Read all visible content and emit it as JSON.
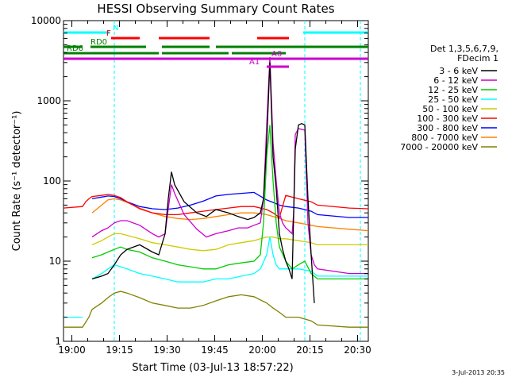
{
  "chart_data": {
    "type": "line",
    "title": "HESSI Observing Summary Count Rates",
    "xlabel": "Start Time (03-Jul-13 18:57:22)",
    "ylabel": "Count Rate (s⁻¹ detector⁻¹)",
    "ylog": true,
    "ylim": [
      1,
      10000
    ],
    "xlim_minutes": [
      0,
      96
    ],
    "x_ticks": [
      "19:00",
      "19:15",
      "19:30",
      "19:45",
      "20:00",
      "20:15",
      "20:30"
    ],
    "x_tick_minutes": [
      2.63,
      17.63,
      32.63,
      47.63,
      62.63,
      77.63,
      92.63
    ],
    "y_ticks": [
      "1",
      "10",
      "100",
      "1000",
      "10000"
    ],
    "y_tick_values": [
      1,
      10,
      100,
      1000,
      10000
    ],
    "legend_header": [
      "Det 1,3,5,6,7,9,",
      "FDecim 1"
    ],
    "timestamp": "3-Jul-2013 20:35",
    "series": [
      {
        "name": "3 - 6 keV",
        "color": "#000000",
        "x": [
          0,
          8,
          9,
          12,
          14,
          16,
          18,
          20,
          24,
          28,
          30,
          32,
          33,
          34,
          35,
          38,
          42,
          45,
          48,
          52,
          55,
          58,
          60,
          62,
          63,
          64,
          65,
          66,
          67,
          68,
          69,
          70,
          71,
          72,
          72.5,
          73,
          74,
          75,
          76,
          77,
          78,
          79,
          80
        ],
        "y": [
          null,
          null,
          6,
          6.5,
          7,
          9,
          12,
          14,
          16,
          13,
          12,
          22,
          60,
          130,
          90,
          55,
          40,
          36,
          44,
          40,
          36,
          33,
          35,
          40,
          60,
          300,
          3000,
          200,
          80,
          22,
          14,
          10,
          8,
          6,
          40,
          250,
          500,
          520,
          500,
          60,
          12,
          3,
          null
        ]
      },
      {
        "name": "6 - 12 keV",
        "color": "#cc00cc",
        "x": [
          0,
          8,
          9,
          12,
          14,
          16,
          18,
          20,
          24,
          28,
          30,
          32,
          33,
          34,
          35,
          38,
          42,
          45,
          48,
          52,
          55,
          58,
          60,
          62,
          63,
          64,
          65,
          66,
          67,
          68,
          69,
          70,
          71,
          72,
          72.5,
          73,
          74,
          75,
          76,
          77,
          78,
          79,
          80,
          90,
          96
        ],
        "y": [
          null,
          null,
          20,
          24,
          26,
          30,
          32,
          32,
          28,
          22,
          20,
          22,
          45,
          90,
          70,
          38,
          25,
          20,
          22,
          24,
          26,
          26,
          28,
          30,
          60,
          500,
          3500,
          300,
          100,
          40,
          30,
          26,
          24,
          22,
          40,
          380,
          450,
          440,
          430,
          30,
          12,
          9,
          8,
          7,
          7
        ]
      },
      {
        "name": "12 - 25 keV",
        "color": "#00cc00",
        "x": [
          0,
          8,
          9,
          12,
          14,
          16,
          18,
          20,
          24,
          28,
          32,
          36,
          40,
          44,
          48,
          52,
          56,
          60,
          62,
          63,
          64,
          65,
          66,
          67,
          68,
          70,
          72,
          74,
          76,
          78,
          80,
          90,
          96
        ],
        "y": [
          null,
          null,
          11,
          12,
          13,
          14,
          15,
          14,
          13,
          11,
          10,
          9,
          8.5,
          8,
          8,
          9,
          9.5,
          10,
          12,
          30,
          200,
          500,
          100,
          30,
          15,
          10,
          8,
          9,
          10,
          7,
          6,
          6,
          6
        ]
      },
      {
        "name": "25 - 50 keV",
        "color": "#00ffff",
        "x": [
          0,
          6,
          8,
          9,
          12,
          14,
          16,
          18,
          20,
          24,
          28,
          32,
          36,
          40,
          44,
          48,
          52,
          56,
          60,
          62,
          64,
          65,
          66,
          67,
          68,
          70,
          74,
          78,
          79,
          80,
          90,
          96
        ],
        "y": [
          2,
          2,
          null,
          6,
          7,
          8,
          9,
          8.5,
          8,
          7,
          6.5,
          6,
          5.5,
          5.5,
          5.5,
          6,
          6,
          6.5,
          7,
          8,
          12,
          20,
          12,
          9,
          8,
          8,
          8,
          7.5,
          7,
          6.5,
          6.5,
          6.5
        ]
      },
      {
        "name": "50 - 100 keV",
        "color": "#cccc00",
        "x": [
          0,
          8,
          9,
          12,
          14,
          16,
          18,
          20,
          24,
          28,
          32,
          36,
          40,
          44,
          48,
          52,
          56,
          60,
          62,
          64,
          66,
          68,
          70,
          74,
          78,
          80,
          90,
          96
        ],
        "y": [
          null,
          null,
          16,
          18,
          20,
          22,
          22,
          21,
          19,
          17,
          16,
          15,
          14,
          13.5,
          14,
          16,
          17,
          18,
          19,
          20,
          20,
          19,
          19,
          18,
          17,
          16,
          16,
          16
        ]
      },
      {
        "name": "100 - 300 keV",
        "color": "#ff0000",
        "x": [
          0,
          6,
          7,
          8,
          9,
          12,
          14,
          16,
          18,
          20,
          24,
          28,
          32,
          36,
          40,
          44,
          48,
          52,
          56,
          60,
          64,
          66,
          68,
          70,
          74,
          78,
          80,
          90,
          96
        ],
        "y": [
          46,
          48,
          55,
          60,
          64,
          66,
          68,
          66,
          62,
          55,
          45,
          40,
          38,
          38,
          40,
          42,
          44,
          46,
          48,
          48,
          44,
          40,
          35,
          66,
          60,
          55,
          50,
          46,
          45
        ]
      },
      {
        "name": "300 - 800 keV",
        "color": "#0000ff",
        "x": [
          0,
          8,
          9,
          12,
          14,
          16,
          18,
          20,
          24,
          28,
          32,
          36,
          40,
          44,
          48,
          52,
          56,
          60,
          64,
          66,
          68,
          70,
          74,
          78,
          80,
          90,
          96
        ],
        "y": [
          null,
          null,
          60,
          63,
          65,
          64,
          60,
          55,
          48,
          45,
          44,
          46,
          50,
          56,
          65,
          68,
          70,
          72,
          58,
          54,
          50,
          48,
          46,
          42,
          38,
          35,
          35
        ]
      },
      {
        "name": "800 - 7000 keV",
        "color": "#ff8000",
        "x": [
          0,
          8,
          9,
          12,
          14,
          16,
          18,
          20,
          24,
          28,
          32,
          36,
          40,
          44,
          48,
          52,
          56,
          60,
          64,
          66,
          68,
          70,
          74,
          78,
          80,
          90,
          96
        ],
        "y": [
          null,
          null,
          40,
          50,
          58,
          60,
          58,
          54,
          46,
          40,
          36,
          34,
          33,
          34,
          36,
          38,
          40,
          40,
          38,
          36,
          34,
          32,
          30,
          28,
          27,
          25,
          24
        ]
      },
      {
        "name": "7000 - 20000 keV",
        "color": "#808000",
        "x": [
          0,
          6,
          8,
          9,
          12,
          14,
          16,
          18,
          20,
          24,
          28,
          32,
          36,
          40,
          44,
          48,
          52,
          56,
          60,
          64,
          66,
          68,
          70,
          74,
          78,
          80,
          90,
          96
        ],
        "y": [
          1.5,
          1.5,
          2,
          2.5,
          3,
          3.5,
          4,
          4.2,
          4,
          3.5,
          3,
          2.8,
          2.6,
          2.6,
          2.8,
          3.2,
          3.6,
          3.8,
          3.6,
          3,
          2.6,
          2.3,
          2,
          2,
          1.8,
          1.6,
          1.5,
          1.5
        ]
      }
    ],
    "flags": [
      {
        "label": "N",
        "color": "#00ffff",
        "segments": [
          [
            0,
            14.5
          ],
          [
            75.5,
            96
          ]
        ],
        "label_at": 15.5
      },
      {
        "label": "F",
        "color": "#ff0000",
        "segments": [
          [
            15,
            24
          ],
          [
            30,
            46
          ],
          [
            61,
            71
          ]
        ],
        "label_at": 13.5
      },
      {
        "label": "RD0",
        "color": "#008000",
        "segments": [
          [
            0,
            6
          ],
          [
            8.5,
            26
          ],
          [
            31,
            46
          ],
          [
            48,
            96
          ]
        ],
        "label_at": 8.5
      },
      {
        "label": "RD6",
        "color": "#008000",
        "segments": [
          [
            0,
            30
          ],
          [
            31,
            52
          ],
          [
            53,
            70
          ]
        ],
        "label_at": 1
      },
      {
        "label": "A1",
        "color": "#cc00cc",
        "segments": [
          [
            64,
            71
          ]
        ],
        "label_at": 58.5
      },
      {
        "label": "A0",
        "color": "#cc00cc",
        "segments": [
          [
            0,
            96
          ]
        ],
        "label_at": 65.5
      }
    ],
    "dashed_lines_minutes": [
      16,
      76,
      93.5
    ]
  }
}
